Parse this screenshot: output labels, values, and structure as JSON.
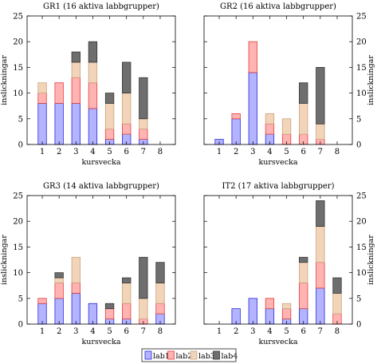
{
  "legend_labels": [
    "lab1",
    "lab2",
    "lab3",
    "lab4"
  ],
  "colors": {
    "lab1": {
      "fill": "#b3b3ff",
      "stroke": "#2b2bd6"
    },
    "lab2": {
      "fill": "#ffb3b3",
      "stroke": "#e0403a"
    },
    "lab3": {
      "fill": "#f2d4b8",
      "stroke": "#c9a27e"
    },
    "lab4": {
      "fill": "#6e6e6e",
      "stroke": "#333333"
    }
  },
  "chart_data": [
    {
      "type": "bar",
      "stacked": true,
      "title": "GR1 (16 aktiva labbgrupper)",
      "xlabel": "kursvecka",
      "ylabel": "inslickningar",
      "ylabel_side": "left",
      "categories": [
        "1",
        "2",
        "3",
        "4",
        "5",
        "6",
        "7",
        "8"
      ],
      "ylim": [
        0,
        25
      ],
      "yticks": [
        0,
        5,
        10,
        15,
        20,
        25
      ],
      "series": [
        {
          "name": "lab1",
          "values": [
            8,
            8,
            8,
            7,
            1,
            2,
            1,
            0
          ]
        },
        {
          "name": "lab2",
          "values": [
            2,
            4,
            5,
            5,
            2,
            2,
            2,
            0
          ]
        },
        {
          "name": "lab3",
          "values": [
            2,
            0,
            3,
            4,
            5,
            6,
            2,
            0
          ]
        },
        {
          "name": "lab4",
          "values": [
            0,
            0,
            2,
            4,
            2,
            6,
            8,
            0
          ]
        }
      ]
    },
    {
      "type": "bar",
      "stacked": true,
      "title": "GR2 (16 aktiva labbgrupper)",
      "xlabel": "kursvecka",
      "ylabel": "inslickningar",
      "ylabel_side": "right",
      "categories": [
        "1",
        "2",
        "3",
        "4",
        "5",
        "6",
        "7",
        "8"
      ],
      "ylim": [
        0,
        25
      ],
      "yticks": [
        0,
        5,
        10,
        15,
        20,
        25
      ],
      "series": [
        {
          "name": "lab1",
          "values": [
            1,
            5,
            14,
            2,
            0,
            0,
            0,
            0
          ]
        },
        {
          "name": "lab2",
          "values": [
            0,
            1,
            6,
            2,
            2,
            2,
            1,
            0
          ]
        },
        {
          "name": "lab3",
          "values": [
            0,
            0,
            0,
            2,
            3,
            6,
            3,
            0
          ]
        },
        {
          "name": "lab4",
          "values": [
            0,
            0,
            0,
            0,
            0,
            4,
            11,
            0
          ]
        }
      ]
    },
    {
      "type": "bar",
      "stacked": true,
      "title": "GR3 (14 aktiva labbgrupper)",
      "xlabel": "kursvecka",
      "ylabel": "inslickningar",
      "ylabel_side": "left",
      "categories": [
        "1",
        "2",
        "3",
        "4",
        "5",
        "6",
        "7",
        "8"
      ],
      "ylim": [
        0,
        25
      ],
      "yticks": [
        0,
        5,
        10,
        15,
        20,
        25
      ],
      "series": [
        {
          "name": "lab1",
          "values": [
            4,
            5,
            6,
            4,
            1,
            1,
            0,
            2
          ]
        },
        {
          "name": "lab2",
          "values": [
            1,
            3,
            2,
            0,
            2,
            3,
            1,
            2
          ]
        },
        {
          "name": "lab3",
          "values": [
            0,
            1,
            5,
            0,
            0,
            4,
            4,
            4
          ]
        },
        {
          "name": "lab4",
          "values": [
            0,
            1,
            0,
            0,
            1,
            1,
            8,
            4
          ]
        }
      ]
    },
    {
      "type": "bar",
      "stacked": true,
      "title": "IT2 (17 aktiva labbgrupper)",
      "xlabel": "kursvecka",
      "ylabel": "inslickningar",
      "ylabel_side": "right",
      "categories": [
        "1",
        "2",
        "3",
        "4",
        "5",
        "6",
        "7",
        "8"
      ],
      "ylim": [
        0,
        25
      ],
      "yticks": [
        0,
        5,
        10,
        15,
        20,
        25
      ],
      "series": [
        {
          "name": "lab1",
          "values": [
            0,
            3,
            5,
            3,
            1,
            3,
            7,
            0
          ]
        },
        {
          "name": "lab2",
          "values": [
            0,
            0,
            0,
            2,
            2,
            5,
            5,
            2
          ]
        },
        {
          "name": "lab3",
          "values": [
            0,
            0,
            0,
            0,
            1,
            4,
            7,
            4
          ]
        },
        {
          "name": "lab4",
          "values": [
            0,
            0,
            0,
            0,
            0,
            1,
            5,
            3
          ]
        }
      ]
    }
  ]
}
